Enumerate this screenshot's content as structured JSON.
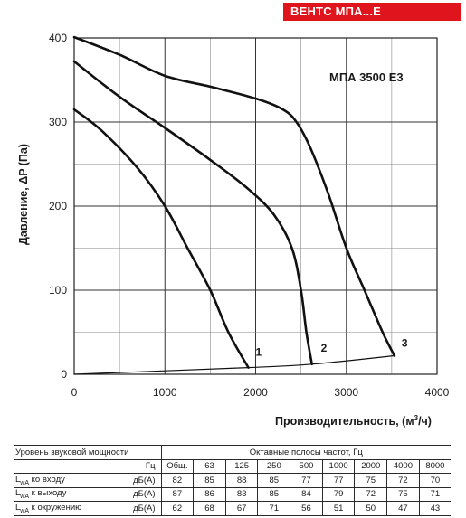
{
  "brand": {
    "label": "ВЕНТС МПА...Е",
    "color": "#e0141c"
  },
  "chart_data": {
    "type": "line",
    "model_label": "МПА 3500 Е3",
    "xlabel": "Производительность, (м",
    "xlabel_sup": "3",
    "xlabel_end": "/ч)",
    "ylabel": "Давление, ΔP (Па)",
    "xlim": [
      0,
      4000
    ],
    "ylim": [
      0,
      400
    ],
    "x_ticks": [
      "0",
      "1000",
      "2000",
      "3000",
      "4000"
    ],
    "y_ticks": [
      "0",
      "100",
      "200",
      "300",
      "400"
    ],
    "x_tick_values": [
      0,
      1000,
      2000,
      3000,
      4000
    ],
    "y_tick_values": [
      0,
      100,
      200,
      300,
      400
    ],
    "grid": true,
    "series": [
      {
        "name": "1",
        "points": [
          [
            0,
            315
          ],
          [
            300,
            290
          ],
          [
            700,
            245
          ],
          [
            1000,
            200
          ],
          [
            1250,
            150
          ],
          [
            1500,
            100
          ],
          [
            1700,
            50
          ],
          [
            1920,
            8
          ]
        ]
      },
      {
        "name": "2",
        "points": [
          [
            0,
            372
          ],
          [
            500,
            330
          ],
          [
            1000,
            293
          ],
          [
            1500,
            255
          ],
          [
            1900,
            222
          ],
          [
            2200,
            190
          ],
          [
            2400,
            150
          ],
          [
            2500,
            100
          ],
          [
            2560,
            50
          ],
          [
            2620,
            12
          ]
        ]
      },
      {
        "name": "3",
        "points": [
          [
            0,
            401
          ],
          [
            500,
            380
          ],
          [
            1000,
            355
          ],
          [
            1500,
            342
          ],
          [
            2000,
            328
          ],
          [
            2300,
            315
          ],
          [
            2450,
            300
          ],
          [
            2600,
            270
          ],
          [
            2800,
            215
          ],
          [
            3000,
            150
          ],
          [
            3200,
            100
          ],
          [
            3400,
            50
          ],
          [
            3530,
            22
          ]
        ]
      },
      {
        "name": "system",
        "points": [
          [
            0,
            0
          ],
          [
            1920,
            8
          ],
          [
            2620,
            12
          ],
          [
            3530,
            22
          ]
        ]
      }
    ]
  },
  "table": {
    "header_left": "Уровень звуковой мощности",
    "header_right": "Октавные полосы частот, Гц",
    "hz_label": "Гц",
    "freq_headers": [
      "Общ.",
      "63",
      "125",
      "250",
      "500",
      "1000",
      "2000",
      "4000",
      "8000"
    ],
    "rows": [
      {
        "label_main": "L",
        "label_sub": "wA",
        "label_rest": " ко входу",
        "unit": "дБ(А)",
        "values": [
          "82",
          "85",
          "88",
          "85",
          "77",
          "77",
          "75",
          "72",
          "70"
        ]
      },
      {
        "label_main": "L",
        "label_sub": "wA",
        "label_rest": " к выходу",
        "unit": "дБ(А)",
        "values": [
          "87",
          "86",
          "83",
          "85",
          "84",
          "79",
          "72",
          "75",
          "71"
        ]
      },
      {
        "label_main": "L",
        "label_sub": "wA",
        "label_rest": " к окружению",
        "unit": "дБ(А)",
        "values": [
          "62",
          "68",
          "67",
          "71",
          "56",
          "51",
          "50",
          "47",
          "43"
        ]
      }
    ]
  }
}
